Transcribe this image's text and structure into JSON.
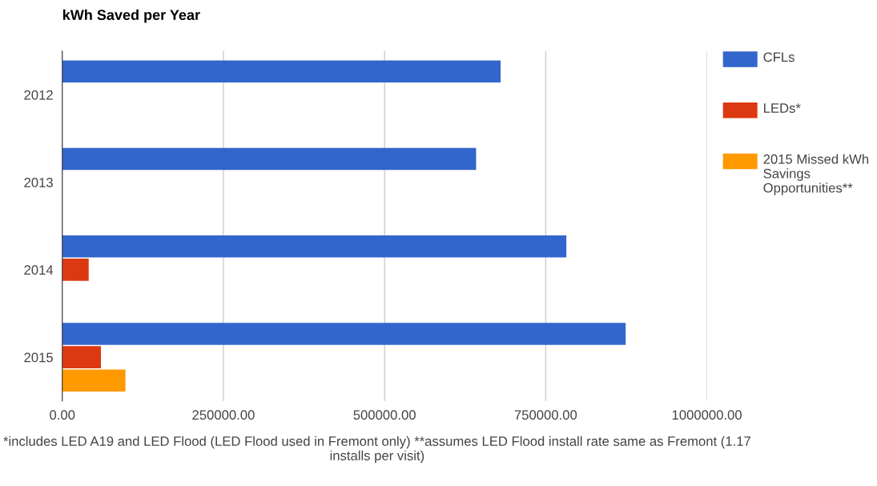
{
  "chart_data": {
    "type": "bar",
    "orientation": "horizontal",
    "title": "kWh Saved per Year",
    "categories": [
      "2012",
      "2013",
      "2014",
      "2015"
    ],
    "series": [
      {
        "name": "CFLs",
        "color": "#3366cc",
        "values": [
          680000,
          642000,
          782000,
          874000
        ]
      },
      {
        "name": "LEDs*",
        "color": "#dc3912",
        "values": [
          null,
          null,
          41000,
          60000
        ]
      },
      {
        "name": "2015 Missed kWh Savings Opportunities**",
        "color": "#ff9900",
        "values": [
          null,
          null,
          null,
          98000
        ]
      }
    ],
    "xlim": [
      0,
      1000000
    ],
    "xticks": [
      {
        "value": 0,
        "label": "0.00"
      },
      {
        "value": 250000,
        "label": "250000.00"
      },
      {
        "value": 500000,
        "label": "500000.00"
      },
      {
        "value": 750000,
        "label": "750000.00"
      },
      {
        "value": 1000000,
        "label": "1000000.00"
      }
    ],
    "grid": "x",
    "legend": "top right",
    "annotations": [
      "*includes LED A19 and LED Flood (LED Flood used in Fremont only) **assumes LED Flood install rate same as Fremont (1.17 installs per visit)"
    ]
  }
}
